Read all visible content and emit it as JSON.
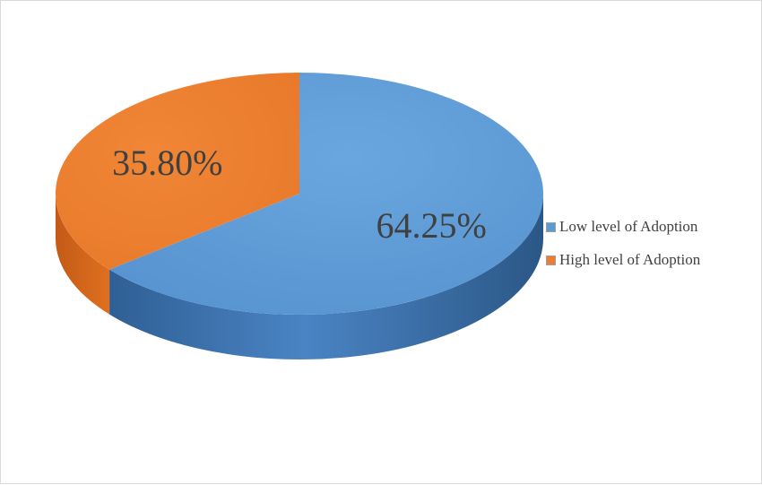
{
  "chart_data": {
    "type": "pie",
    "style": "3d",
    "labels": [
      "Low level of Adoption",
      "High level of Adoption"
    ],
    "values": [
      64.25,
      35.8
    ],
    "data_labels": [
      "64.25%",
      "35.80%"
    ],
    "colors": [
      "#5B9BD5",
      "#ED7D31"
    ],
    "legend": "right"
  }
}
